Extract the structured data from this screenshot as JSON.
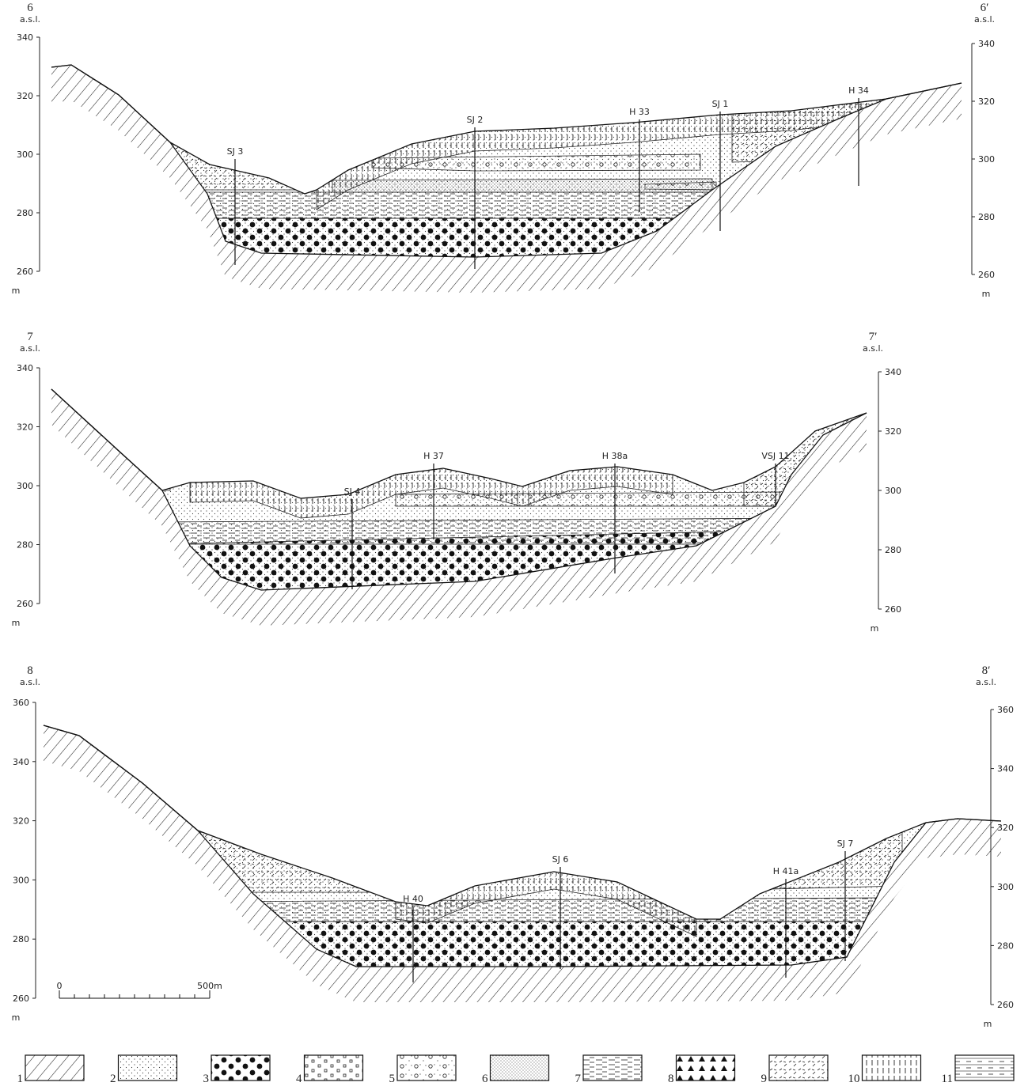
{
  "sections": [
    {
      "left_label": "6",
      "right_label": "6′",
      "left_unit_label": "a.s.l.",
      "right_unit_label": "a.s.l.",
      "left_ticks": [
        340,
        320,
        300,
        280,
        260
      ],
      "right_ticks": [
        340,
        320,
        300,
        280,
        260
      ],
      "left_m": "m",
      "right_m": "m",
      "boreholes": [
        {
          "label": "SJ 3"
        },
        {
          "label": "SJ 2"
        },
        {
          "label": "H 33"
        },
        {
          "label": "SJ 1"
        },
        {
          "label": "H 34"
        }
      ]
    },
    {
      "left_label": "7",
      "right_label": "7′",
      "left_unit_label": "a.s.l.",
      "right_unit_label": "a.s.l.",
      "left_ticks": [
        340,
        320,
        300,
        280,
        260
      ],
      "right_ticks": [
        340,
        320,
        300,
        280,
        260
      ],
      "left_m": "m",
      "right_m": "m",
      "boreholes": [
        {
          "label": "SJ 4"
        },
        {
          "label": "H 37"
        },
        {
          "label": "H 38a"
        },
        {
          "label": "VSJ 11"
        }
      ]
    },
    {
      "left_label": "8",
      "right_label": "8′",
      "left_unit_label": "a.s.l.",
      "right_unit_label": "a.s.l.",
      "left_ticks": [
        360,
        340,
        320,
        300,
        280,
        260
      ],
      "right_ticks": [
        360,
        340,
        320,
        300,
        280,
        260
      ],
      "left_m": "m",
      "right_m": "m",
      "boreholes": [
        {
          "label": "H 40"
        },
        {
          "label": "SJ 6"
        },
        {
          "label": "H 41a"
        },
        {
          "label": "SJ 7"
        }
      ]
    }
  ],
  "scale": {
    "start": "0",
    "end": "500m"
  },
  "legend": [
    "1",
    "2",
    "3",
    "4",
    "5",
    "6",
    "7",
    "8",
    "9",
    "10",
    "11"
  ]
}
